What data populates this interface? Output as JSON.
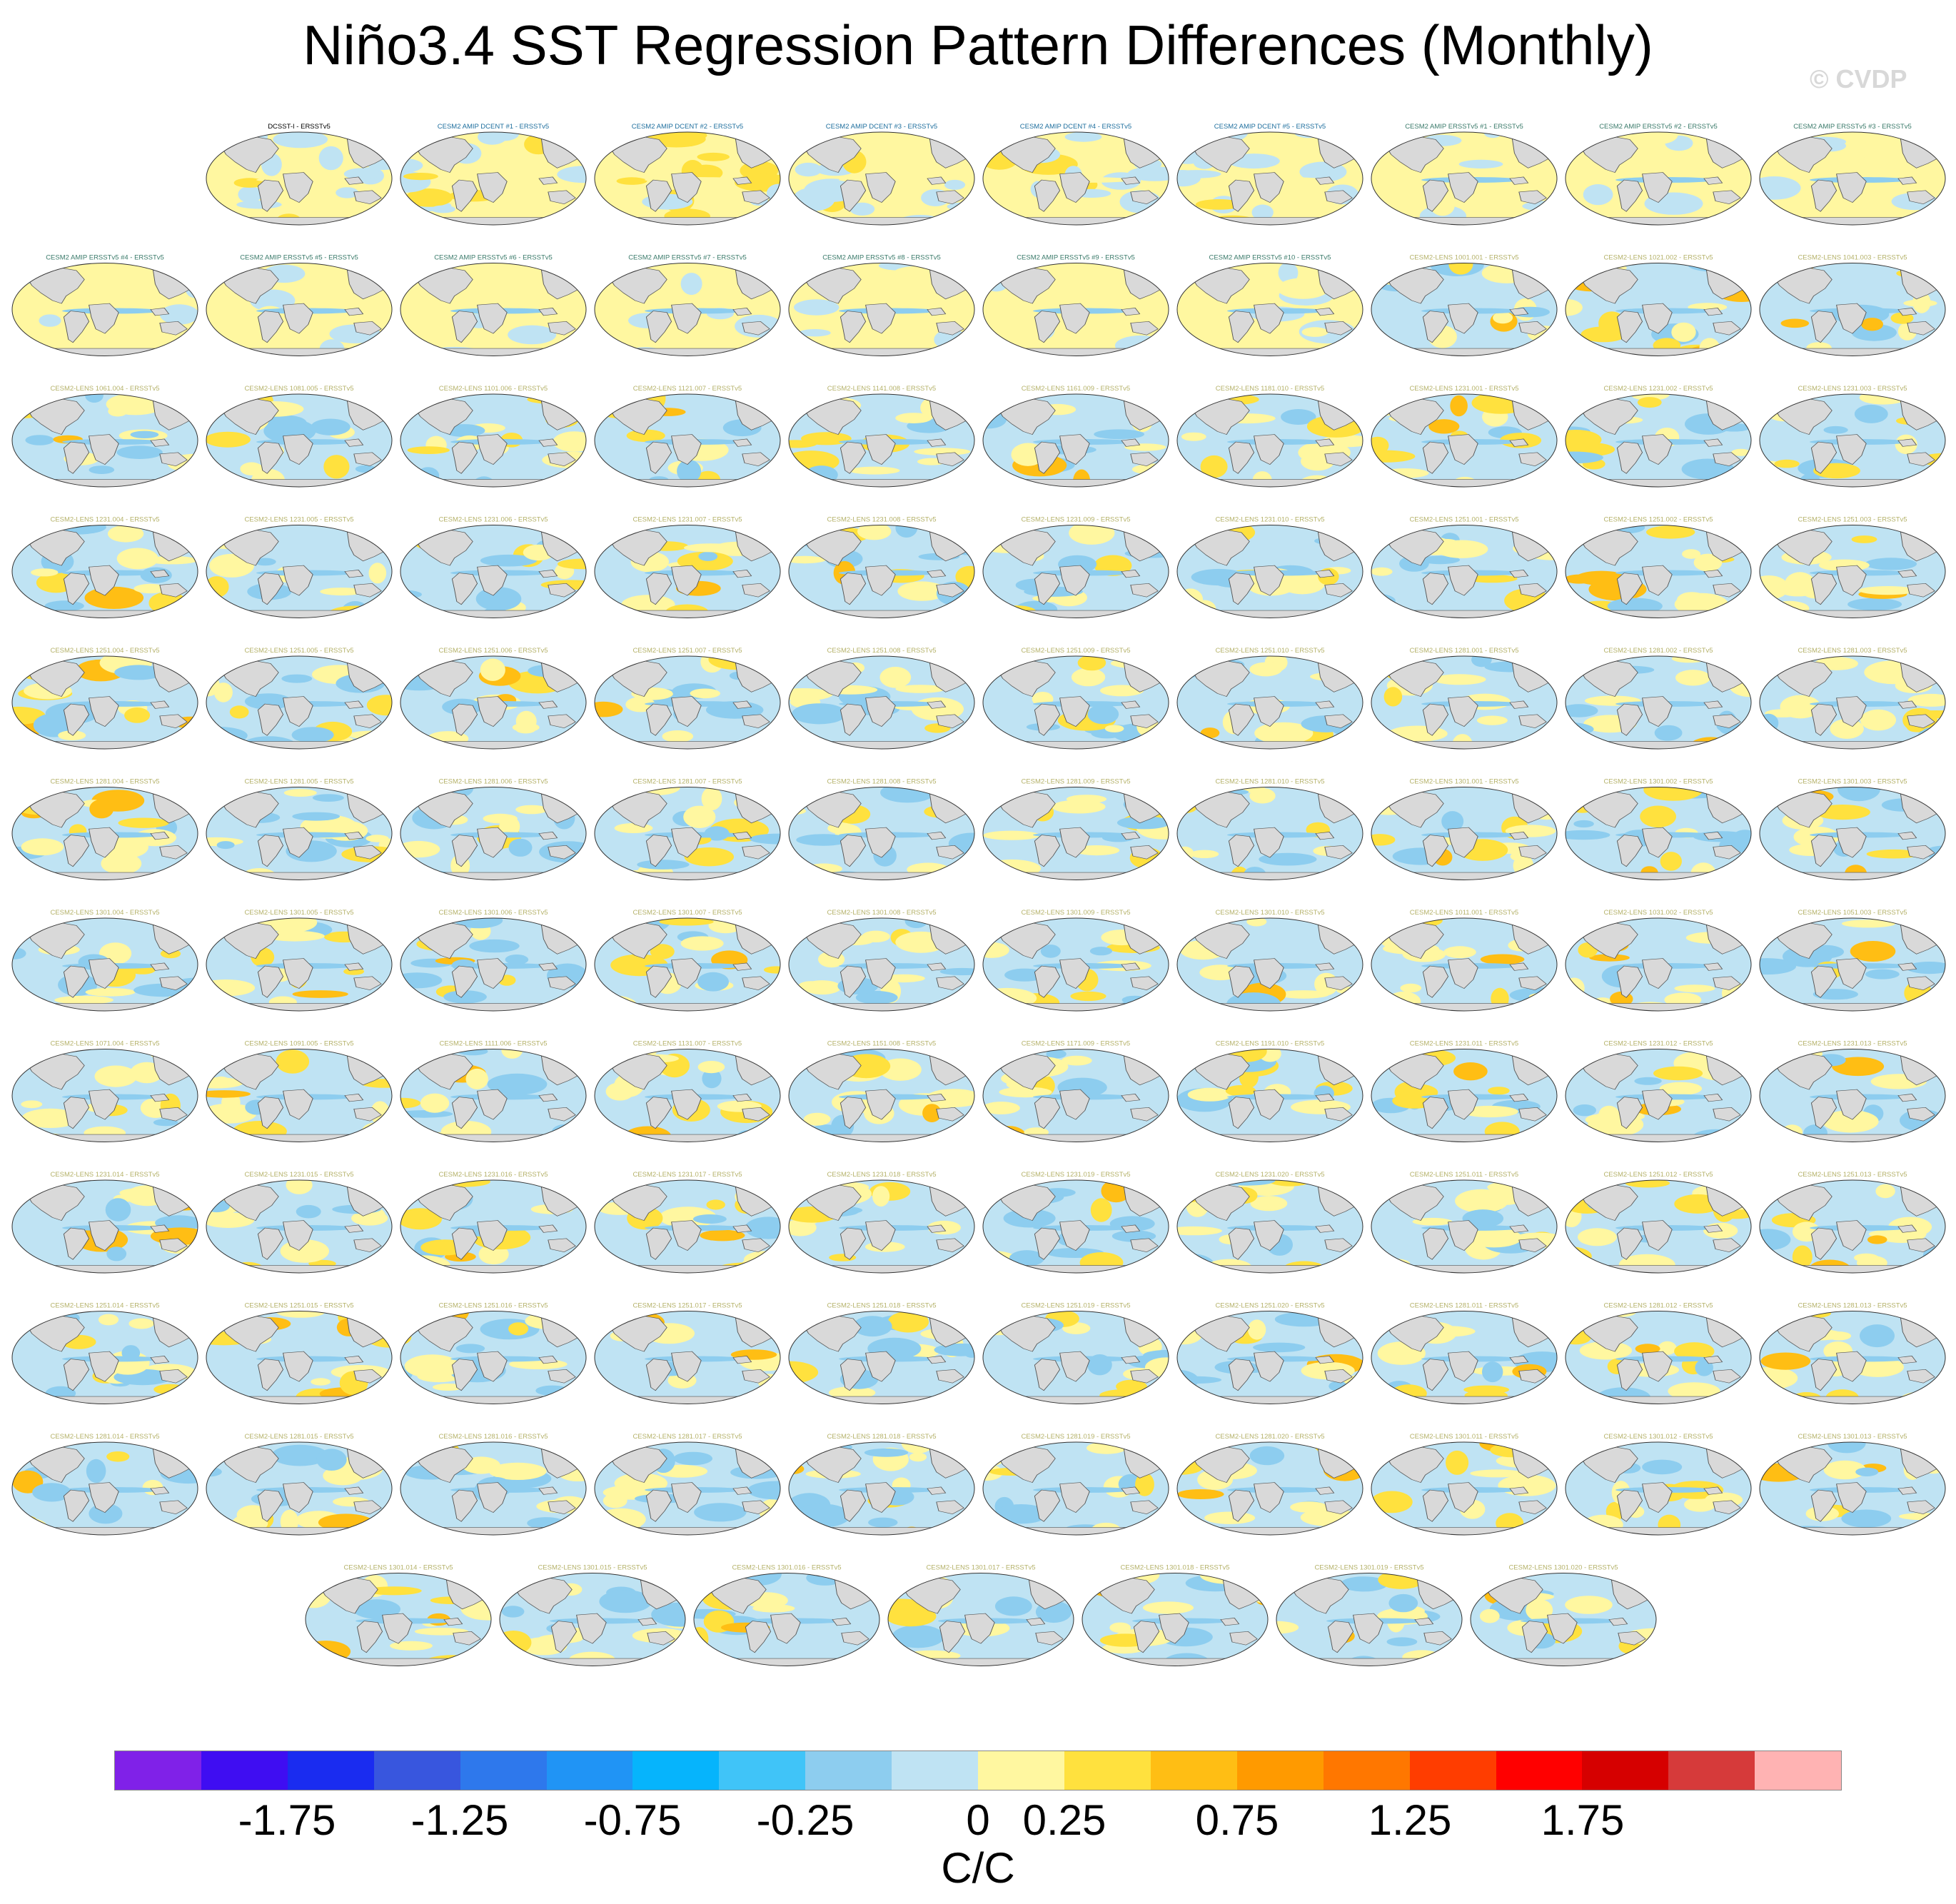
{
  "title": "Niño3.4 SST Regression Pattern Differences (Monthly)",
  "watermark": "© CVDP",
  "colorbar": {
    "colors": [
      "#8021e8",
      "#3f0df2",
      "#1a2cf0",
      "#3856de",
      "#2e78ec",
      "#2094f5",
      "#06b4fc",
      "#40c4f8",
      "#8dcdef",
      "#bfe3f3",
      "#fff7a0",
      "#ffe13e",
      "#ffbe14",
      "#ff9a00",
      "#ff7700",
      "#ff3d00",
      "#ff0000",
      "#d60000",
      "#d63a3a",
      "#ffb3b3"
    ],
    "tick_labels": [
      "-1.75",
      "-1.25",
      "-0.75",
      "-0.25",
      "0",
      "0.25",
      "0.75",
      "1.25",
      "1.75"
    ],
    "units": "C/C"
  },
  "palette": {
    "land": "#d9d9d9",
    "ocean_blue": "#bfe3f3",
    "ocean_blue_mid": "#8dcdef",
    "yellow": "#fff7a0",
    "yellow_mid": "#ffe13e",
    "orange": "#ffbe14"
  },
  "panels": [
    {
      "title": "DCSST-I - ERSSTv5",
      "color": "#000000"
    },
    {
      "title": "CESM2 AMIP DCENT #1 - ERSSTv5",
      "color": "#1f6f9e"
    },
    {
      "title": "CESM2 AMIP DCENT #2 - ERSSTv5",
      "color": "#1f6f9e"
    },
    {
      "title": "CESM2 AMIP DCENT #3 - ERSSTv5",
      "color": "#1f6f9e"
    },
    {
      "title": "CESM2 AMIP DCENT #4 - ERSSTv5",
      "color": "#1f6f9e"
    },
    {
      "title": "CESM2 AMIP DCENT #5 - ERSSTv5",
      "color": "#1f6f9e"
    },
    {
      "title": "CESM2 AMIP ERSSTv5 #1 - ERSSTv5",
      "color": "#3a7a6a"
    },
    {
      "title": "CESM2 AMIP ERSSTv5 #2 - ERSSTv5",
      "color": "#3a7a6a"
    },
    {
      "title": "CESM2 AMIP ERSSTv5 #3 - ERSSTv5",
      "color": "#3a7a6a"
    },
    {
      "title": "CESM2 AMIP ERSSTv5 #4 - ERSSTv5",
      "color": "#3a7a6a"
    },
    {
      "title": "CESM2 AMIP ERSSTv5 #5 - ERSSTv5",
      "color": "#3a7a6a"
    },
    {
      "title": "CESM2 AMIP ERSSTv5 #6 - ERSSTv5",
      "color": "#3a7a6a"
    },
    {
      "title": "CESM2 AMIP ERSSTv5 #7 - ERSSTv5",
      "color": "#3a7a6a"
    },
    {
      "title": "CESM2 AMIP ERSSTv5 #8 - ERSSTv5",
      "color": "#3a7a6a"
    },
    {
      "title": "CESM2 AMIP ERSSTv5 #9 - ERSSTv5",
      "color": "#3a7a6a"
    },
    {
      "title": "CESM2 AMIP ERSSTv5 #10 - ERSSTv5",
      "color": "#3a7a6a"
    },
    {
      "title": "CESM2-LENS 1001.001 - ERSSTv5",
      "color": "#b5b26a"
    },
    {
      "title": "CESM2-LENS 1021.002 - ERSSTv5",
      "color": "#b5b26a"
    },
    {
      "title": "CESM2-LENS 1041.003 - ERSSTv5",
      "color": "#b5b26a"
    },
    {
      "title": "CESM2-LENS 1061.004 - ERSSTv5",
      "color": "#b5b26a"
    },
    {
      "title": "CESM2-LENS 1081.005 - ERSSTv5",
      "color": "#b5b26a"
    },
    {
      "title": "CESM2-LENS 1101.006 - ERSSTv5",
      "color": "#b5b26a"
    },
    {
      "title": "CESM2-LENS 1121.007 - ERSSTv5",
      "color": "#b5b26a"
    },
    {
      "title": "CESM2-LENS 1141.008 - ERSSTv5",
      "color": "#b5b26a"
    },
    {
      "title": "CESM2-LENS 1161.009 - ERSSTv5",
      "color": "#b5b26a"
    },
    {
      "title": "CESM2-LENS 1181.010 - ERSSTv5",
      "color": "#b5b26a"
    },
    {
      "title": "CESM2-LENS 1231.001 - ERSSTv5",
      "color": "#b5b26a"
    },
    {
      "title": "CESM2-LENS 1231.002 - ERSSTv5",
      "color": "#b5b26a"
    },
    {
      "title": "CESM2-LENS 1231.003 - ERSSTv5",
      "color": "#b5b26a"
    },
    {
      "title": "CESM2-LENS 1231.004 - ERSSTv5",
      "color": "#b5b26a"
    },
    {
      "title": "CESM2-LENS 1231.005 - ERSSTv5",
      "color": "#b5b26a"
    },
    {
      "title": "CESM2-LENS 1231.006 - ERSSTv5",
      "color": "#b5b26a"
    },
    {
      "title": "CESM2-LENS 1231.007 - ERSSTv5",
      "color": "#b5b26a"
    },
    {
      "title": "CESM2-LENS 1231.008 - ERSSTv5",
      "color": "#b5b26a"
    },
    {
      "title": "CESM2-LENS 1231.009 - ERSSTv5",
      "color": "#b5b26a"
    },
    {
      "title": "CESM2-LENS 1231.010 - ERSSTv5",
      "color": "#b5b26a"
    },
    {
      "title": "CESM2-LENS 1251.001 - ERSSTv5",
      "color": "#b5b26a"
    },
    {
      "title": "CESM2-LENS 1251.002 - ERSSTv5",
      "color": "#b5b26a"
    },
    {
      "title": "CESM2-LENS 1251.003 - ERSSTv5",
      "color": "#b5b26a"
    },
    {
      "title": "CESM2-LENS 1251.004 - ERSSTv5",
      "color": "#b5b26a"
    },
    {
      "title": "CESM2-LENS 1251.005 - ERSSTv5",
      "color": "#b5b26a"
    },
    {
      "title": "CESM2-LENS 1251.006 - ERSSTv5",
      "color": "#b5b26a"
    },
    {
      "title": "CESM2-LENS 1251.007 - ERSSTv5",
      "color": "#b5b26a"
    },
    {
      "title": "CESM2-LENS 1251.008 - ERSSTv5",
      "color": "#b5b26a"
    },
    {
      "title": "CESM2-LENS 1251.009 - ERSSTv5",
      "color": "#b5b26a"
    },
    {
      "title": "CESM2-LENS 1251.010 - ERSSTv5",
      "color": "#b5b26a"
    },
    {
      "title": "CESM2-LENS 1281.001 - ERSSTv5",
      "color": "#b5b26a"
    },
    {
      "title": "CESM2-LENS 1281.002 - ERSSTv5",
      "color": "#b5b26a"
    },
    {
      "title": "CESM2-LENS 1281.003 - ERSSTv5",
      "color": "#b5b26a"
    },
    {
      "title": "CESM2-LENS 1281.004 - ERSSTv5",
      "color": "#b5b26a"
    },
    {
      "title": "CESM2-LENS 1281.005 - ERSSTv5",
      "color": "#b5b26a"
    },
    {
      "title": "CESM2-LENS 1281.006 - ERSSTv5",
      "color": "#b5b26a"
    },
    {
      "title": "CESM2-LENS 1281.007 - ERSSTv5",
      "color": "#b5b26a"
    },
    {
      "title": "CESM2-LENS 1281.008 - ERSSTv5",
      "color": "#b5b26a"
    },
    {
      "title": "CESM2-LENS 1281.009 - ERSSTv5",
      "color": "#b5b26a"
    },
    {
      "title": "CESM2-LENS 1281.010 - ERSSTv5",
      "color": "#b5b26a"
    },
    {
      "title": "CESM2-LENS 1301.001 - ERSSTv5",
      "color": "#b5b26a"
    },
    {
      "title": "CESM2-LENS 1301.002 - ERSSTv5",
      "color": "#b5b26a"
    },
    {
      "title": "CESM2-LENS 1301.003 - ERSSTv5",
      "color": "#b5b26a"
    },
    {
      "title": "CESM2-LENS 1301.004 - ERSSTv5",
      "color": "#b5b26a"
    },
    {
      "title": "CESM2-LENS 1301.005 - ERSSTv5",
      "color": "#b5b26a"
    },
    {
      "title": "CESM2-LENS 1301.006 - ERSSTv5",
      "color": "#b5b26a"
    },
    {
      "title": "CESM2-LENS 1301.007 - ERSSTv5",
      "color": "#b5b26a"
    },
    {
      "title": "CESM2-LENS 1301.008 - ERSSTv5",
      "color": "#b5b26a"
    },
    {
      "title": "CESM2-LENS 1301.009 - ERSSTv5",
      "color": "#b5b26a"
    },
    {
      "title": "CESM2-LENS 1301.010 - ERSSTv5",
      "color": "#b5b26a"
    },
    {
      "title": "CESM2-LENS 1011.001 - ERSSTv5",
      "color": "#b5b26a"
    },
    {
      "title": "CESM2-LENS 1031.002 - ERSSTv5",
      "color": "#b5b26a"
    },
    {
      "title": "CESM2-LENS 1051.003 - ERSSTv5",
      "color": "#b5b26a"
    },
    {
      "title": "CESM2-LENS 1071.004 - ERSSTv5",
      "color": "#b5b26a"
    },
    {
      "title": "CESM2-LENS 1091.005 - ERSSTv5",
      "color": "#b5b26a"
    },
    {
      "title": "CESM2-LENS 1111.006 - ERSSTv5",
      "color": "#b5b26a"
    },
    {
      "title": "CESM2-LENS 1131.007 - ERSSTv5",
      "color": "#b5b26a"
    },
    {
      "title": "CESM2-LENS 1151.008 - ERSSTv5",
      "color": "#b5b26a"
    },
    {
      "title": "CESM2-LENS 1171.009 - ERSSTv5",
      "color": "#b5b26a"
    },
    {
      "title": "CESM2-LENS 1191.010 - ERSSTv5",
      "color": "#b5b26a"
    },
    {
      "title": "CESM2-LENS 1231.011 - ERSSTv5",
      "color": "#b5b26a"
    },
    {
      "title": "CESM2-LENS 1231.012 - ERSSTv5",
      "color": "#b5b26a"
    },
    {
      "title": "CESM2-LENS 1231.013 - ERSSTv5",
      "color": "#b5b26a"
    },
    {
      "title": "CESM2-LENS 1231.014 - ERSSTv5",
      "color": "#b5b26a"
    },
    {
      "title": "CESM2-LENS 1231.015 - ERSSTv5",
      "color": "#b5b26a"
    },
    {
      "title": "CESM2-LENS 1231.016 - ERSSTv5",
      "color": "#b5b26a"
    },
    {
      "title": "CESM2-LENS 1231.017 - ERSSTv5",
      "color": "#b5b26a"
    },
    {
      "title": "CESM2-LENS 1231.018 - ERSSTv5",
      "color": "#b5b26a"
    },
    {
      "title": "CESM2-LENS 1231.019 - ERSSTv5",
      "color": "#b5b26a"
    },
    {
      "title": "CESM2-LENS 1231.020 - ERSSTv5",
      "color": "#b5b26a"
    },
    {
      "title": "CESM2-LENS 1251.011 - ERSSTv5",
      "color": "#b5b26a"
    },
    {
      "title": "CESM2-LENS 1251.012 - ERSSTv5",
      "color": "#b5b26a"
    },
    {
      "title": "CESM2-LENS 1251.013 - ERSSTv5",
      "color": "#b5b26a"
    },
    {
      "title": "CESM2-LENS 1251.014 - ERSSTv5",
      "color": "#b5b26a"
    },
    {
      "title": "CESM2-LENS 1251.015 - ERSSTv5",
      "color": "#b5b26a"
    },
    {
      "title": "CESM2-LENS 1251.016 - ERSSTv5",
      "color": "#b5b26a"
    },
    {
      "title": "CESM2-LENS 1251.017 - ERSSTv5",
      "color": "#b5b26a"
    },
    {
      "title": "CESM2-LENS 1251.018 - ERSSTv5",
      "color": "#b5b26a"
    },
    {
      "title": "CESM2-LENS 1251.019 - ERSSTv5",
      "color": "#b5b26a"
    },
    {
      "title": "CESM2-LENS 1251.020 - ERSSTv5",
      "color": "#b5b26a"
    },
    {
      "title": "CESM2-LENS 1281.011 - ERSSTv5",
      "color": "#b5b26a"
    },
    {
      "title": "CESM2-LENS 1281.012 - ERSSTv5",
      "color": "#b5b26a"
    },
    {
      "title": "CESM2-LENS 1281.013 - ERSSTv5",
      "color": "#b5b26a"
    },
    {
      "title": "CESM2-LENS 1281.014 - ERSSTv5",
      "color": "#b5b26a"
    },
    {
      "title": "CESM2-LENS 1281.015 - ERSSTv5",
      "color": "#b5b26a"
    },
    {
      "title": "CESM2-LENS 1281.016 - ERSSTv5",
      "color": "#b5b26a"
    },
    {
      "title": "CESM2-LENS 1281.017 - ERSSTv5",
      "color": "#b5b26a"
    },
    {
      "title": "CESM2-LENS 1281.018 - ERSSTv5",
      "color": "#b5b26a"
    },
    {
      "title": "CESM2-LENS 1281.019 - ERSSTv5",
      "color": "#b5b26a"
    },
    {
      "title": "CESM2-LENS 1281.020 - ERSSTv5",
      "color": "#b5b26a"
    },
    {
      "title": "CESM2-LENS 1301.011 - ERSSTv5",
      "color": "#b5b26a"
    },
    {
      "title": "CESM2-LENS 1301.012 - ERSSTv5",
      "color": "#b5b26a"
    },
    {
      "title": "CESM2-LENS 1301.013 - ERSSTv5",
      "color": "#b5b26a"
    },
    {
      "title": "CESM2-LENS 1301.014 - ERSSTv5",
      "color": "#b5b26a"
    },
    {
      "title": "CESM2-LENS 1301.015 - ERSSTv5",
      "color": "#b5b26a"
    },
    {
      "title": "CESM2-LENS 1301.016 - ERSSTv5",
      "color": "#b5b26a"
    },
    {
      "title": "CESM2-LENS 1301.017 - ERSSTv5",
      "color": "#b5b26a"
    },
    {
      "title": "CESM2-LENS 1301.018 - ERSSTv5",
      "color": "#b5b26a"
    },
    {
      "title": "CESM2-LENS 1301.019 - ERSSTv5",
      "color": "#b5b26a"
    },
    {
      "title": "CESM2-LENS 1301.020 - ERSSTv5",
      "color": "#b5b26a"
    }
  ]
}
